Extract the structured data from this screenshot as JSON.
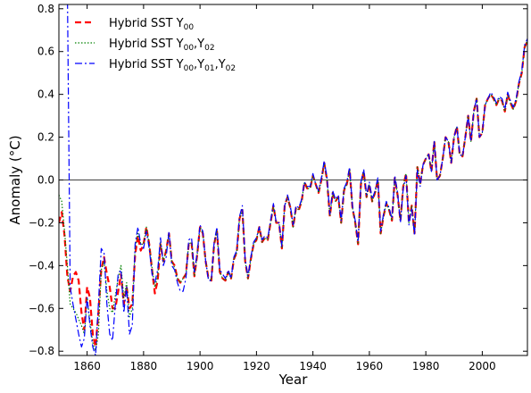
{
  "chart_data": {
    "type": "line",
    "title": "",
    "xlabel": "Year",
    "ylabel": "Anomaly (°C)",
    "xlim": [
      1850,
      2016
    ],
    "ylim": [
      -0.82,
      0.82
    ],
    "xticks": [
      1860,
      1880,
      1900,
      1920,
      1940,
      1960,
      1980,
      2000
    ],
    "xtick_labels": [
      "1860",
      "1880",
      "1900",
      "1920",
      "1940",
      "1960",
      "1980",
      "2000"
    ],
    "yticks": [
      -0.8,
      -0.6,
      -0.4,
      -0.2,
      0.0,
      0.2,
      0.4,
      0.6,
      0.8
    ],
    "ytick_labels": [
      "−0.8",
      "−0.6",
      "−0.4",
      "−0.2",
      "0.0",
      "0.2",
      "0.4",
      "0.6",
      "0.8"
    ],
    "grid": false,
    "zero_line": true,
    "legend_position": "top-left",
    "x": [
      1850,
      1851,
      1852,
      1853,
      1854,
      1855,
      1856,
      1857,
      1858,
      1859,
      1860,
      1861,
      1862,
      1863,
      1864,
      1865,
      1866,
      1867,
      1868,
      1869,
      1870,
      1871,
      1872,
      1873,
      1874,
      1875,
      1876,
      1877,
      1878,
      1879,
      1880,
      1881,
      1882,
      1883,
      1884,
      1885,
      1886,
      1887,
      1888,
      1889,
      1890,
      1891,
      1892,
      1893,
      1894,
      1895,
      1896,
      1897,
      1898,
      1899,
      1900,
      1901,
      1902,
      1903,
      1904,
      1905,
      1906,
      1907,
      1908,
      1909,
      1910,
      1911,
      1912,
      1913,
      1914,
      1915,
      1916,
      1917,
      1918,
      1919,
      1920,
      1921,
      1922,
      1923,
      1924,
      1925,
      1926,
      1927,
      1928,
      1929,
      1930,
      1931,
      1932,
      1933,
      1934,
      1935,
      1936,
      1937,
      1938,
      1939,
      1940,
      1941,
      1942,
      1943,
      1944,
      1945,
      1946,
      1947,
      1948,
      1949,
      1950,
      1951,
      1952,
      1953,
      1954,
      1955,
      1956,
      1957,
      1958,
      1959,
      1960,
      1961,
      1962,
      1963,
      1964,
      1965,
      1966,
      1967,
      1968,
      1969,
      1970,
      1971,
      1972,
      1973,
      1974,
      1975,
      1976,
      1977,
      1978,
      1979,
      1980,
      1981,
      1982,
      1983,
      1984,
      1985,
      1986,
      1987,
      1988,
      1989,
      1990,
      1991,
      1992,
      1993,
      1994,
      1995,
      1996,
      1997,
      1998,
      1999,
      2000,
      2001,
      2002,
      2003,
      2004,
      2005,
      2006,
      2007,
      2008,
      2009,
      2010,
      2011,
      2012,
      2013,
      2014,
      2015,
      2016
    ],
    "series": [
      {
        "name": "Hybrid SST Y00",
        "legend": {
          "base": "Hybrid SST Y",
          "subs": [
            "00"
          ]
        },
        "color": "#ff0000",
        "style": "dashed",
        "values": [
          -0.2,
          -0.15,
          -0.26,
          -0.45,
          -0.52,
          -0.45,
          -0.43,
          -0.47,
          -0.62,
          -0.7,
          -0.5,
          -0.55,
          -0.72,
          -0.78,
          -0.62,
          -0.42,
          -0.36,
          -0.44,
          -0.5,
          -0.6,
          -0.6,
          -0.52,
          -0.44,
          -0.58,
          -0.5,
          -0.6,
          -0.58,
          -0.35,
          -0.26,
          -0.33,
          -0.3,
          -0.22,
          -0.3,
          -0.42,
          -0.53,
          -0.47,
          -0.3,
          -0.38,
          -0.33,
          -0.25,
          -0.38,
          -0.4,
          -0.46,
          -0.48,
          -0.46,
          -0.44,
          -0.3,
          -0.29,
          -0.45,
          -0.35,
          -0.22,
          -0.25,
          -0.38,
          -0.46,
          -0.47,
          -0.3,
          -0.24,
          -0.43,
          -0.46,
          -0.47,
          -0.43,
          -0.46,
          -0.37,
          -0.34,
          -0.18,
          -0.14,
          -0.38,
          -0.46,
          -0.37,
          -0.3,
          -0.28,
          -0.22,
          -0.29,
          -0.27,
          -0.28,
          -0.2,
          -0.12,
          -0.2,
          -0.2,
          -0.32,
          -0.12,
          -0.08,
          -0.13,
          -0.22,
          -0.13,
          -0.14,
          -0.1,
          -0.01,
          -0.04,
          -0.04,
          0.02,
          -0.02,
          -0.06,
          0.0,
          0.08,
          0.0,
          -0.17,
          -0.06,
          -0.1,
          -0.08,
          -0.2,
          -0.05,
          -0.02,
          0.05,
          -0.13,
          -0.2,
          -0.3,
          -0.02,
          0.04,
          -0.08,
          -0.02,
          -0.1,
          -0.06,
          0.0,
          -0.25,
          -0.17,
          -0.11,
          -0.14,
          -0.19,
          0.01,
          -0.07,
          -0.19,
          -0.03,
          0.03,
          -0.2,
          -0.12,
          -0.25,
          0.06,
          -0.02,
          0.07,
          0.1,
          0.12,
          0.04,
          0.18,
          0.0,
          0.02,
          0.1,
          0.2,
          0.18,
          0.08,
          0.2,
          0.25,
          0.12,
          0.11,
          0.2,
          0.3,
          0.18,
          0.32,
          0.38,
          0.2,
          0.22,
          0.35,
          0.38,
          0.4,
          0.38,
          0.35,
          0.38,
          0.37,
          0.32,
          0.4,
          0.36,
          0.33,
          0.37,
          0.45,
          0.5,
          0.62,
          0.65
        ]
      },
      {
        "name": "Hybrid SST Y00,Y02",
        "legend": {
          "base": "Hybrid SST Y",
          "subs": [
            "00",
            "02"
          ]
        },
        "color": "#008000",
        "style": "dotted",
        "values": [
          -0.07,
          -0.1,
          -0.24,
          -0.4,
          -0.58,
          -0.6,
          -0.62,
          -0.65,
          -0.68,
          -0.72,
          -0.55,
          -0.66,
          -0.76,
          -0.8,
          -0.72,
          -0.42,
          -0.38,
          -0.52,
          -0.6,
          -0.62,
          -0.54,
          -0.46,
          -0.4,
          -0.55,
          -0.48,
          -0.64,
          -0.6,
          -0.32,
          -0.25,
          -0.3,
          -0.3,
          -0.22,
          -0.3,
          -0.41,
          -0.5,
          -0.45,
          -0.29,
          -0.38,
          -0.33,
          -0.25,
          -0.38,
          -0.41,
          -0.46,
          -0.48,
          -0.46,
          -0.44,
          -0.3,
          -0.29,
          -0.45,
          -0.35,
          -0.22,
          -0.25,
          -0.38,
          -0.46,
          -0.47,
          -0.3,
          -0.24,
          -0.43,
          -0.46,
          -0.47,
          -0.43,
          -0.46,
          -0.37,
          -0.34,
          -0.18,
          -0.14,
          -0.38,
          -0.46,
          -0.37,
          -0.3,
          -0.28,
          -0.22,
          -0.29,
          -0.27,
          -0.28,
          -0.2,
          -0.12,
          -0.2,
          -0.2,
          -0.32,
          -0.12,
          -0.08,
          -0.13,
          -0.22,
          -0.13,
          -0.14,
          -0.1,
          -0.01,
          -0.04,
          -0.04,
          0.02,
          -0.02,
          -0.06,
          0.0,
          0.08,
          0.0,
          -0.17,
          -0.06,
          -0.1,
          -0.08,
          -0.2,
          -0.05,
          -0.02,
          0.05,
          -0.13,
          -0.2,
          -0.3,
          -0.02,
          0.04,
          -0.08,
          -0.02,
          -0.1,
          -0.06,
          0.0,
          -0.25,
          -0.17,
          -0.11,
          -0.14,
          -0.19,
          0.01,
          -0.07,
          -0.19,
          -0.03,
          0.03,
          -0.2,
          -0.12,
          -0.25,
          0.06,
          -0.02,
          0.07,
          0.1,
          0.12,
          0.04,
          0.18,
          0.0,
          0.02,
          0.1,
          0.2,
          0.18,
          0.08,
          0.2,
          0.25,
          0.12,
          0.11,
          0.2,
          0.3,
          0.18,
          0.32,
          0.38,
          0.2,
          0.22,
          0.35,
          0.38,
          0.4,
          0.38,
          0.35,
          0.38,
          0.37,
          0.32,
          0.4,
          0.36,
          0.33,
          0.37,
          0.45,
          0.5,
          0.62,
          0.65
        ]
      },
      {
        "name": "Hybrid SST Y00,Y01,Y02",
        "legend": {
          "base": "Hybrid SST Y",
          "subs": [
            "00",
            "01",
            "02"
          ]
        },
        "color": "#0000ff",
        "style": "dashdot",
        "values": [
          null,
          null,
          null,
          0.9,
          -0.5,
          -0.58,
          -0.65,
          -0.72,
          -0.78,
          -0.74,
          -0.55,
          -0.68,
          -0.78,
          -0.82,
          -0.58,
          -0.32,
          -0.34,
          -0.58,
          -0.72,
          -0.75,
          -0.58,
          -0.44,
          -0.42,
          -0.62,
          -0.5,
          -0.72,
          -0.68,
          -0.3,
          -0.22,
          -0.3,
          -0.32,
          -0.24,
          -0.32,
          -0.44,
          -0.48,
          -0.42,
          -0.27,
          -0.4,
          -0.36,
          -0.24,
          -0.4,
          -0.42,
          -0.48,
          -0.52,
          -0.52,
          -0.46,
          -0.28,
          -0.27,
          -0.43,
          -0.34,
          -0.21,
          -0.24,
          -0.38,
          -0.47,
          -0.47,
          -0.29,
          -0.22,
          -0.42,
          -0.44,
          -0.46,
          -0.42,
          -0.46,
          -0.36,
          -0.33,
          -0.17,
          -0.12,
          -0.37,
          -0.45,
          -0.36,
          -0.29,
          -0.27,
          -0.22,
          -0.28,
          -0.26,
          -0.27,
          -0.19,
          -0.11,
          -0.2,
          -0.2,
          -0.31,
          -0.12,
          -0.07,
          -0.12,
          -0.21,
          -0.12,
          -0.13,
          -0.09,
          -0.01,
          -0.03,
          -0.03,
          0.03,
          -0.02,
          -0.05,
          0.01,
          0.09,
          0.01,
          -0.16,
          -0.05,
          -0.09,
          -0.07,
          -0.19,
          -0.04,
          -0.01,
          0.06,
          -0.12,
          -0.19,
          -0.29,
          -0.01,
          0.05,
          -0.07,
          -0.01,
          -0.09,
          -0.05,
          0.01,
          -0.24,
          -0.16,
          -0.1,
          -0.13,
          -0.18,
          0.02,
          -0.06,
          -0.2,
          -0.04,
          0.02,
          -0.21,
          -0.13,
          -0.26,
          0.05,
          -0.03,
          0.07,
          0.1,
          0.12,
          0.04,
          0.18,
          0.0,
          0.02,
          0.1,
          0.2,
          0.18,
          0.08,
          0.2,
          0.25,
          0.12,
          0.11,
          0.2,
          0.3,
          0.18,
          0.32,
          0.38,
          0.2,
          0.22,
          0.35,
          0.38,
          0.41,
          0.39,
          0.36,
          0.39,
          0.38,
          0.33,
          0.41,
          0.37,
          0.34,
          0.38,
          0.46,
          0.51,
          0.63,
          0.66
        ]
      }
    ]
  }
}
